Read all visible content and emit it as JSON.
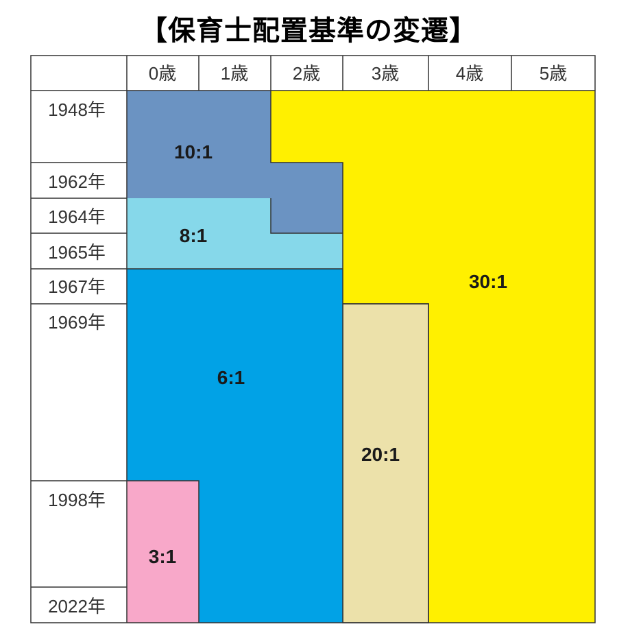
{
  "title": "【保育士配置基準の変遷】",
  "age_columns": [
    "0歳",
    "1歳",
    "2歳",
    "3歳",
    "4歳",
    "5歳"
  ],
  "year_rows": [
    "1948年",
    "1962年",
    "1964年",
    "1965年",
    "1967年",
    "1969年",
    "1998年",
    "2022年"
  ],
  "ratios": {
    "r10": "10:1",
    "r8": "8:1",
    "r6": "6:1",
    "r3": "3:1",
    "r20": "20:1",
    "r30": "30:1"
  },
  "colors": {
    "r10": "#6b93c2",
    "r8": "#86d8ea",
    "r6": "#01a2e6",
    "r3": "#f8a8c9",
    "r20": "#ece1aa",
    "r30": "#fff000"
  }
}
